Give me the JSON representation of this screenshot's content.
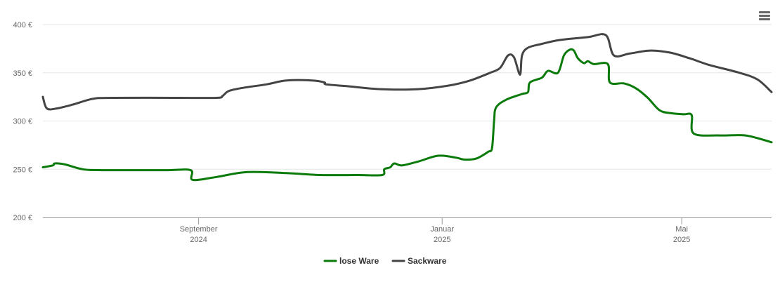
{
  "menu_icon": "hamburger-menu-icon",
  "chart_data": {
    "type": "line",
    "y_ticks": [
      {
        "value": 200,
        "label": "200 €"
      },
      {
        "value": 250,
        "label": "250 €"
      },
      {
        "value": 300,
        "label": "300 €"
      },
      {
        "value": 350,
        "label": "350 €"
      },
      {
        "value": 400,
        "label": "400 €"
      }
    ],
    "ylim": [
      200,
      400
    ],
    "xlim": [
      "2024-06-15",
      "2025-06-15"
    ],
    "x_ticks": [
      {
        "date": "2024-09-01",
        "month": "September",
        "year": "2024"
      },
      {
        "date": "2025-01-01",
        "month": "Januar",
        "year": "2025"
      },
      {
        "date": "2025-05-01",
        "month": "Mai",
        "year": "2025"
      }
    ],
    "grid": true,
    "legend_position": "bottom-center",
    "series": [
      {
        "name": "lose Ware",
        "color": "#0a7a0a",
        "points": [
          [
            "2024-06-15",
            252
          ],
          [
            "2024-06-20",
            254
          ],
          [
            "2024-06-21",
            256
          ],
          [
            "2024-06-26",
            255
          ],
          [
            "2024-07-05",
            250
          ],
          [
            "2024-07-15",
            249
          ],
          [
            "2024-08-15",
            249
          ],
          [
            "2024-08-28",
            249
          ],
          [
            "2024-08-29",
            239
          ],
          [
            "2024-09-10",
            242
          ],
          [
            "2024-09-25",
            247
          ],
          [
            "2024-10-15",
            246
          ],
          [
            "2024-11-01",
            244
          ],
          [
            "2024-11-20",
            244
          ],
          [
            "2024-12-02",
            244
          ],
          [
            "2024-12-03",
            250
          ],
          [
            "2024-12-06",
            252
          ],
          [
            "2024-12-08",
            256
          ],
          [
            "2024-12-12",
            254
          ],
          [
            "2024-12-20",
            258
          ],
          [
            "2024-12-30",
            264
          ],
          [
            "2025-01-08",
            262
          ],
          [
            "2025-01-12",
            260
          ],
          [
            "2025-01-18",
            261
          ],
          [
            "2025-01-24",
            268
          ],
          [
            "2025-01-26",
            272
          ],
          [
            "2025-01-27",
            300
          ],
          [
            "2025-01-28",
            314
          ],
          [
            "2025-02-02",
            322
          ],
          [
            "2025-02-10",
            328
          ],
          [
            "2025-02-13",
            330
          ],
          [
            "2025-02-14",
            340
          ],
          [
            "2025-02-20",
            345
          ],
          [
            "2025-02-23",
            352
          ],
          [
            "2025-02-28",
            350
          ],
          [
            "2025-03-03",
            368
          ],
          [
            "2025-03-06",
            374
          ],
          [
            "2025-03-08",
            373
          ],
          [
            "2025-03-10",
            365
          ],
          [
            "2025-03-13",
            360
          ],
          [
            "2025-03-15",
            362
          ],
          [
            "2025-03-18",
            359
          ],
          [
            "2025-03-25",
            359
          ],
          [
            "2025-03-26",
            340
          ],
          [
            "2025-04-02",
            339
          ],
          [
            "2025-04-08",
            334
          ],
          [
            "2025-04-14",
            324
          ],
          [
            "2025-04-20",
            311
          ],
          [
            "2025-04-26",
            308
          ],
          [
            "2025-05-02",
            307
          ],
          [
            "2025-05-06",
            306
          ],
          [
            "2025-05-07",
            287
          ],
          [
            "2025-05-20",
            285
          ],
          [
            "2025-06-02",
            285
          ],
          [
            "2025-06-15",
            278
          ]
        ]
      },
      {
        "name": "Sackware",
        "color": "#444444",
        "points": [
          [
            "2024-06-15",
            325
          ],
          [
            "2024-06-17",
            313
          ],
          [
            "2024-06-22",
            313
          ],
          [
            "2024-06-30",
            317
          ],
          [
            "2024-07-10",
            323
          ],
          [
            "2024-07-20",
            324
          ],
          [
            "2024-08-20",
            324
          ],
          [
            "2024-09-10",
            324
          ],
          [
            "2024-09-13",
            326
          ],
          [
            "2024-09-16",
            331
          ],
          [
            "2024-09-22",
            334
          ],
          [
            "2024-10-05",
            338
          ],
          [
            "2024-10-15",
            342
          ],
          [
            "2024-10-28",
            342
          ],
          [
            "2024-11-03",
            340
          ],
          [
            "2024-11-04",
            338
          ],
          [
            "2024-11-15",
            336
          ],
          [
            "2024-12-01",
            333
          ],
          [
            "2024-12-20",
            333
          ],
          [
            "2025-01-05",
            337
          ],
          [
            "2025-01-15",
            342
          ],
          [
            "2025-01-25",
            350
          ],
          [
            "2025-01-30",
            355
          ],
          [
            "2025-02-03",
            368
          ],
          [
            "2025-02-06",
            366
          ],
          [
            "2025-02-09",
            348
          ],
          [
            "2025-02-10",
            368
          ],
          [
            "2025-02-13",
            376
          ],
          [
            "2025-02-20",
            380
          ],
          [
            "2025-03-01",
            384
          ],
          [
            "2025-03-15",
            387
          ],
          [
            "2025-03-24",
            389
          ],
          [
            "2025-03-28",
            368
          ],
          [
            "2025-04-05",
            370
          ],
          [
            "2025-04-15",
            373
          ],
          [
            "2025-04-25",
            371
          ],
          [
            "2025-05-05",
            365
          ],
          [
            "2025-05-15",
            358
          ],
          [
            "2025-05-30",
            350
          ],
          [
            "2025-06-08",
            343
          ],
          [
            "2025-06-15",
            330
          ]
        ]
      }
    ]
  }
}
